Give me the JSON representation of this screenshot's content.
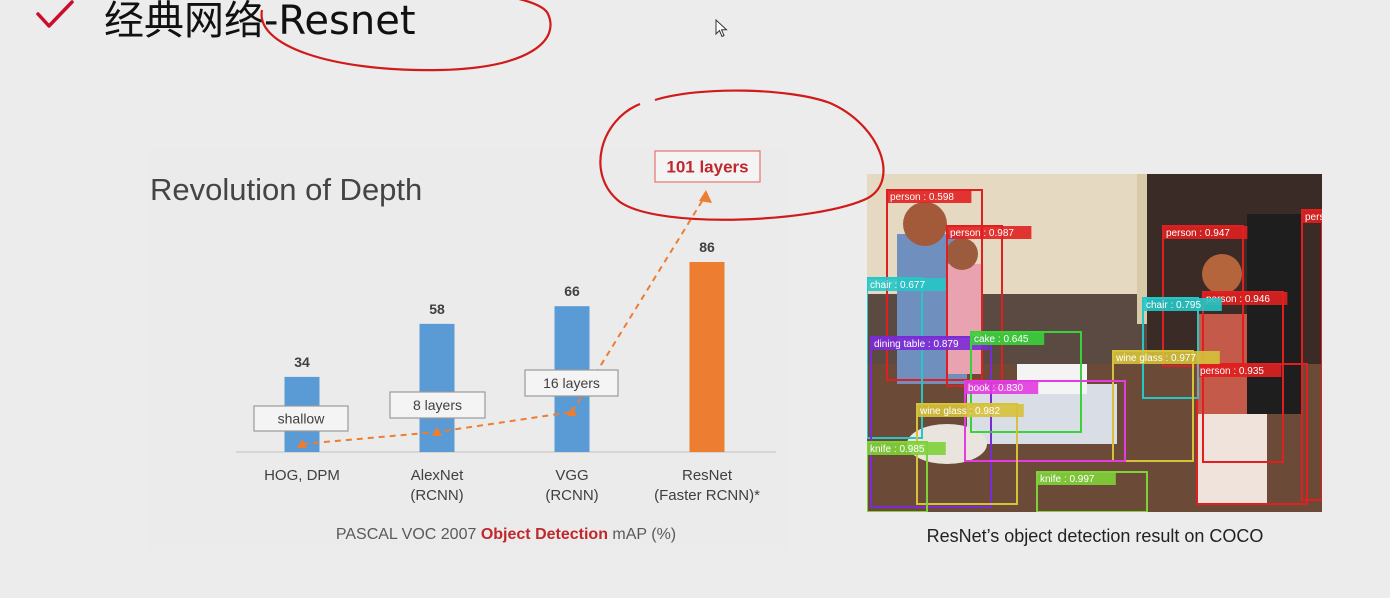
{
  "slide": {
    "title": "经典网络-Resnet",
    "check_color": "#c8102e",
    "annotation_color": "#d11a1a"
  },
  "chart_data": {
    "type": "bar",
    "title": "Revolution of Depth",
    "categories": [
      "HOG, DPM",
      "AlexNet\n(RCNN)",
      "VGG\n(RCNN)",
      "ResNet\n(Faster RCNN)*"
    ],
    "category_lines": [
      [
        "HOG, DPM"
      ],
      [
        "AlexNet",
        "(RCNN)"
      ],
      [
        "VGG",
        "(RCNN)"
      ],
      [
        "ResNet",
        "(Faster RCNN)*"
      ]
    ],
    "values": [
      34,
      58,
      66,
      86
    ],
    "bar_colors": [
      "#5b9bd5",
      "#5b9bd5",
      "#5b9bd5",
      "#ed7d31"
    ],
    "ylim": [
      0,
      86
    ],
    "layer_labels": [
      "shallow",
      "8 layers",
      "16 layers",
      "101 layers"
    ],
    "trend_color": "#ed7d31",
    "caption": {
      "prefix": "PASCAL VOC 2007 ",
      "highlight": "Object Detection",
      "suffix": " mAP (%)",
      "highlight_color": "#c0282d"
    }
  },
  "coco": {
    "caption": "ResNet’s object detection result on COCO",
    "detections": [
      {
        "label": "person : 0.598",
        "color": "#e02020"
      },
      {
        "label": "person : 0.987",
        "color": "#e02020"
      },
      {
        "label": "person : 0.947",
        "color": "#e02020"
      },
      {
        "label": "person",
        "color": "#e02020"
      },
      {
        "label": "person : 0.946",
        "color": "#e02020"
      },
      {
        "label": "person : 0.935",
        "color": "#e02020"
      },
      {
        "label": "chair : 0.677",
        "color": "#26c6c6"
      },
      {
        "label": "chair : 0.795",
        "color": "#26c6c6"
      },
      {
        "label": "dining table : 0.879",
        "color": "#7b2bd6"
      },
      {
        "label": "cake : 0.645",
        "color": "#3ad13a"
      },
      {
        "label": "wine glass : 0.977",
        "color": "#d6c23a"
      },
      {
        "label": "book : 0.830",
        "color": "#e23be0"
      },
      {
        "label": "wine glass : 0.982",
        "color": "#d6c23a"
      },
      {
        "label": "knife : 0.985",
        "color": "#7fd13a"
      },
      {
        "label": "knife : 0.997",
        "color": "#7fd13a"
      }
    ]
  }
}
